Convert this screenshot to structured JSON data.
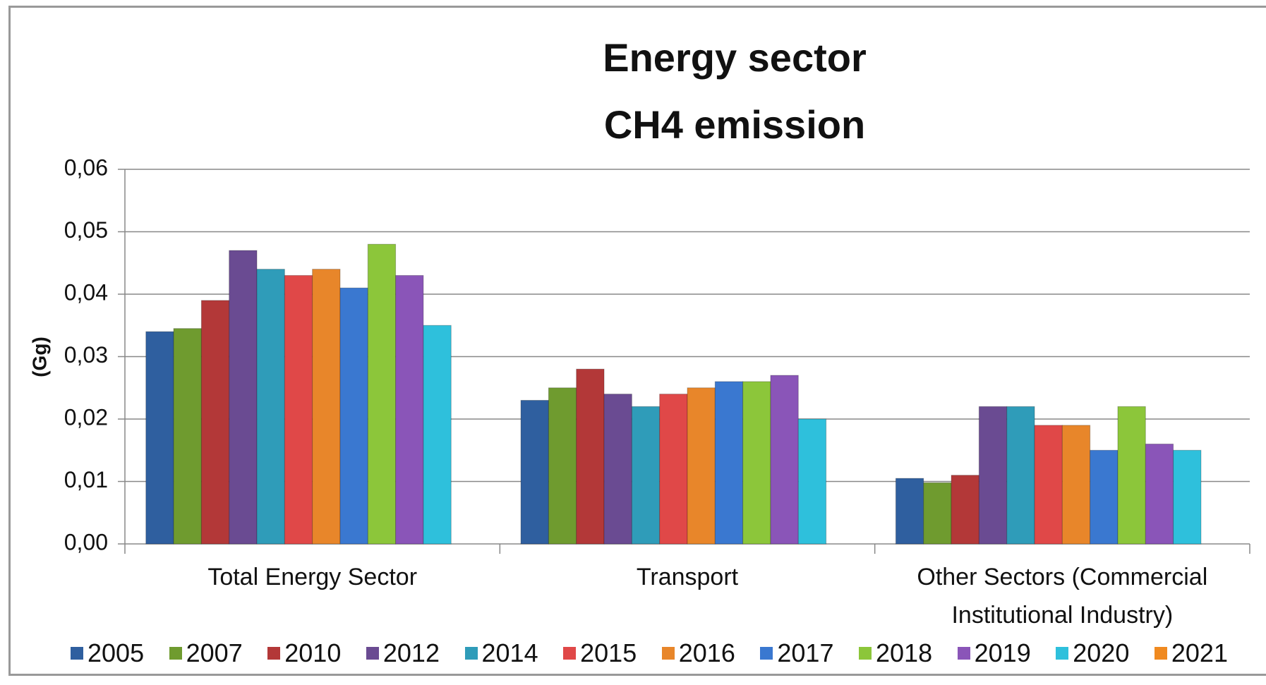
{
  "chart_data": {
    "type": "bar",
    "title": "Energy sector",
    "subtitle": "CH4 emission",
    "y_label": "(Gg)",
    "categories": [
      "Total Energy Sector",
      "Transport",
      "Other Sectors (Commercial Institutional Industry)"
    ],
    "series": [
      {
        "name": "2005",
        "color": "#2f5f9f",
        "values": [
          0.034,
          0.023,
          0.0105
        ]
      },
      {
        "name": "2007",
        "color": "#6f9b2f",
        "values": [
          0.0345,
          0.025,
          0.0098
        ]
      },
      {
        "name": "2010",
        "color": "#b33838",
        "values": [
          0.039,
          0.028,
          0.011
        ]
      },
      {
        "name": "2012",
        "color": "#6a4b92",
        "values": [
          0.047,
          0.024,
          0.022
        ]
      },
      {
        "name": "2014",
        "color": "#2f9cb9",
        "values": [
          0.044,
          0.022,
          0.022
        ]
      },
      {
        "name": "2015",
        "color": "#e04848",
        "values": [
          0.043,
          0.024,
          0.019
        ]
      },
      {
        "name": "2016",
        "color": "#e8862a",
        "values": [
          0.044,
          0.025,
          0.019
        ]
      },
      {
        "name": "2017",
        "color": "#3a78d0",
        "values": [
          0.041,
          0.026,
          0.015
        ]
      },
      {
        "name": "2018",
        "color": "#8cc63a",
        "values": [
          0.048,
          0.026,
          0.022
        ]
      },
      {
        "name": "2019",
        "color": "#8a55b8",
        "values": [
          0.043,
          0.027,
          0.016
        ]
      },
      {
        "name": "2020",
        "color": "#2ec0dc",
        "values": [
          0.035,
          0.02,
          0.015
        ]
      },
      {
        "name": "2021",
        "color": "#f08a20",
        "values": [
          null,
          null,
          null
        ]
      }
    ],
    "ylim": [
      0,
      0.06
    ],
    "yticks": [
      {
        "value": 0,
        "label": "0,00"
      },
      {
        "value": 0.01,
        "label": "0,01"
      },
      {
        "value": 0.02,
        "label": "0,02"
      },
      {
        "value": 0.03,
        "label": "0,03"
      },
      {
        "value": 0.04,
        "label": "0,04"
      },
      {
        "value": 0.05,
        "label": "0,05"
      },
      {
        "value": 0.06,
        "label": "0,06"
      }
    ],
    "grid": true
  }
}
